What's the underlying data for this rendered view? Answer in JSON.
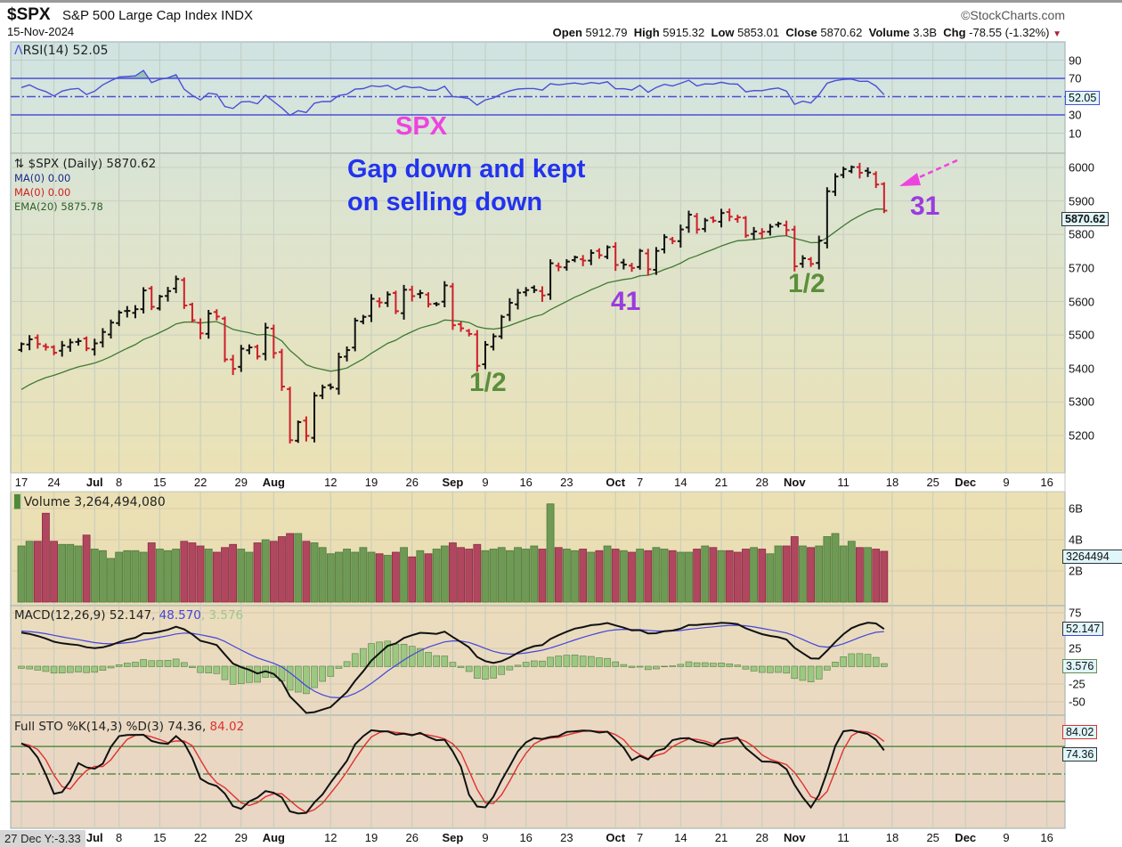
{
  "header": {
    "symbol": "$SPX",
    "name": "S&P 500 Large Cap Index  INDX",
    "date": "15-Nov-2024",
    "logo": "©StockCharts.com",
    "open_label": "Open",
    "open": "5912.79",
    "high_label": "High",
    "high": "5915.32",
    "low_label": "Low",
    "low": "5853.01",
    "close_label": "Close",
    "close": "5870.62",
    "volume_label": "Volume",
    "volume": "3.3B",
    "chg_label": "Chg",
    "chg": "-78.55 (-1.32%)",
    "chg_icon": "down-triangle"
  },
  "rsi": {
    "legend": "RSI(14) 52.05",
    "value_tag": "52.05",
    "ticks": [
      "90",
      "70",
      "30",
      "10"
    ]
  },
  "price": {
    "legend": "$SPX (Daily) 5870.62",
    "ma1": "MA(0) 0.00",
    "ma2": "MA(0) 0.00",
    "ema": "EMA(20) 5875.78",
    "value_tag": "5870.62",
    "ticks": [
      "6000",
      "5900",
      "5800",
      "5700",
      "5600",
      "5500",
      "5400",
      "5300",
      "5200"
    ]
  },
  "annotations": {
    "spx": "SPX",
    "gap_line1": "Gap down and kept",
    "gap_line2": "on selling down",
    "n31": "31",
    "n41": "41",
    "half1": "1/2",
    "half2": "1/2"
  },
  "volume": {
    "legend": "Volume 3,264,494,080",
    "value_tag": "3264494",
    "ticks": [
      "6B",
      "4B",
      "2B"
    ]
  },
  "macd": {
    "legend_main": "MACD(12,26,9) 52.147",
    "legend_signal": ", 48.570",
    "legend_hist": ", 3.576",
    "tag_macd": "52.147",
    "tag_hist": "3.576",
    "ticks": [
      "75",
      "25",
      "-25",
      "-50"
    ]
  },
  "sto": {
    "legend_main": "Full STO %K(14,3) %D(3) 74.36,",
    "legend_d": " 84.02",
    "tag_k": "74.36",
    "tag_d": "84.02"
  },
  "footer": {
    "crosshair": "27 Dec Y:-3.33"
  },
  "colors": {
    "up": "#111111",
    "down": "#cc1f2a",
    "ema": "#3f7a33",
    "rsi": "#4b4fd6",
    "vol_up": "#6f9a55",
    "vol_down": "#b0475f",
    "annotation_blue": "#2233ee",
    "annotation_magenta": "#ee44dd",
    "annotation_purple": "#9a3be0",
    "annotation_green": "#5b8f3a"
  },
  "chart_data": {
    "type": "ohlc",
    "title": "$SPX S&P 500 Large Cap Index (Daily)",
    "first_date": "17-Jun-2024",
    "last_date": "15-Nov-2024",
    "ylim": [
      5100,
      6050
    ],
    "closes": [
      5473,
      5487,
      5473,
      5464,
      5447,
      5469,
      5478,
      5482,
      5460,
      5475,
      5509,
      5537,
      5567,
      5572,
      5577,
      5633,
      5584,
      5615,
      5631,
      5667,
      5588,
      5544,
      5505,
      5564,
      5555,
      5427,
      5399,
      5459,
      5463,
      5436,
      5522,
      5446,
      5346,
      5186,
      5240,
      5199,
      5319,
      5344,
      5344,
      5434,
      5455,
      5543,
      5554,
      5608,
      5597,
      5621,
      5571,
      5635,
      5616,
      5625,
      5592,
      5592,
      5648,
      5529,
      5520,
      5503,
      5408,
      5471,
      5496,
      5554,
      5596,
      5626,
      5634,
      5634,
      5618,
      5714,
      5703,
      5719,
      5732,
      5722,
      5745,
      5738,
      5762,
      5709,
      5710,
      5700,
      5751,
      5696,
      5751,
      5792,
      5780,
      5815,
      5859,
      5815,
      5842,
      5841,
      5864,
      5853,
      5851,
      5797,
      5809,
      5808,
      5823,
      5832,
      5813,
      5705,
      5729,
      5712,
      5782,
      5929,
      5973,
      5995,
      6001,
      5984,
      5985,
      5949,
      5871
    ],
    "volume_billions": [
      3.6,
      3.9,
      3.9,
      5.7,
      3.9,
      3.7,
      3.7,
      3.6,
      4.3,
      3.4,
      3.3,
      2.8,
      3.2,
      3.3,
      3.3,
      3.2,
      3.8,
      3.4,
      3.3,
      3.4,
      3.9,
      3.8,
      3.6,
      3.4,
      3.2,
      3.5,
      3.7,
      3.4,
      3.2,
      3.8,
      4.0,
      3.9,
      4.2,
      4.4,
      4.4,
      3.9,
      3.8,
      3.5,
      3.1,
      3.2,
      3.4,
      3.2,
      3.5,
      3.2,
      3.1,
      3.0,
      3.2,
      3.5,
      2.9,
      3.3,
      3.1,
      3.4,
      3.6,
      3.8,
      3.5,
      3.4,
      3.7,
      3.3,
      3.4,
      3.5,
      3.3,
      3.5,
      3.4,
      3.6,
      3.4,
      6.3,
      3.5,
      3.4,
      3.3,
      3.4,
      3.2,
      3.3,
      3.6,
      3.4,
      3.3,
      3.2,
      3.4,
      3.3,
      3.5,
      3.4,
      3.3,
      3.2,
      3.2,
      3.4,
      3.6,
      3.5,
      3.3,
      3.3,
      3.2,
      3.4,
      3.5,
      3.4,
      3.1,
      3.6,
      3.6,
      4.2,
      3.6,
      3.5,
      3.6,
      4.2,
      4.4,
      3.6,
      3.9,
      3.5,
      3.5,
      3.4,
      3.26
    ],
    "indicators": [
      "RSI(14)",
      "EMA(20)",
      "MACD(12,26,9)",
      "Full STO %K(14,3) %D(3)"
    ],
    "x_ticks": [
      {
        "label": "17",
        "i": 0
      },
      {
        "label": "24",
        "i": 4
      },
      {
        "label": "Jul",
        "i": 9,
        "month": true
      },
      {
        "label": "8",
        "i": 12
      },
      {
        "label": "15",
        "i": 17
      },
      {
        "label": "22",
        "i": 22
      },
      {
        "label": "29",
        "i": 27
      },
      {
        "label": "Aug",
        "i": 31,
        "month": true
      },
      {
        "label": "12",
        "i": 38
      },
      {
        "label": "19",
        "i": 43
      },
      {
        "label": "26",
        "i": 48
      },
      {
        "label": "Sep",
        "i": 53,
        "month": true
      },
      {
        "label": "9",
        "i": 57
      },
      {
        "label": "16",
        "i": 62
      },
      {
        "label": "23",
        "i": 67
      },
      {
        "label": "Oct",
        "i": 73,
        "month": true
      },
      {
        "label": "7",
        "i": 76
      },
      {
        "label": "14",
        "i": 81
      },
      {
        "label": "21",
        "i": 86
      },
      {
        "label": "28",
        "i": 91
      },
      {
        "label": "Nov",
        "i": 95,
        "month": true
      },
      {
        "label": "11",
        "i": 101
      },
      {
        "label": "18",
        "i": 107
      },
      {
        "label": "25",
        "i": 112
      },
      {
        "label": "Dec",
        "i": 116,
        "month": true
      },
      {
        "label": "9",
        "i": 121
      },
      {
        "label": "16",
        "i": 126
      }
    ]
  }
}
